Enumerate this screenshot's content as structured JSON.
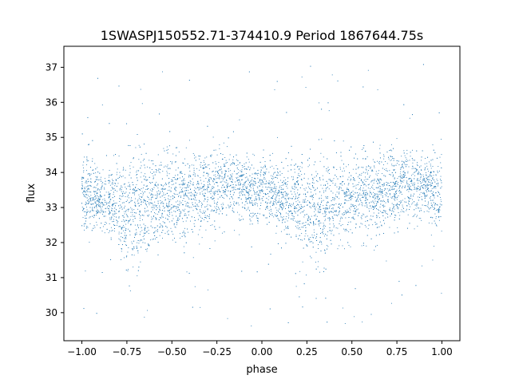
{
  "chart_data": {
    "type": "scatter",
    "title": "1SWASPJ150552.71-374410.9 Period 1867644.75s",
    "xlabel": "phase",
    "ylabel": "flux",
    "xlim": [
      -1.1,
      1.1
    ],
    "ylim": [
      29.2,
      37.6
    ],
    "xticks": [
      -1.0,
      -0.75,
      -0.5,
      -0.25,
      0.0,
      0.25,
      0.5,
      0.75,
      1.0
    ],
    "xtick_labels": [
      "−1.00",
      "−0.75",
      "−0.50",
      "−0.25",
      "0.00",
      "0.25",
      "0.50",
      "0.75",
      "1.00"
    ],
    "yticks": [
      30,
      31,
      32,
      33,
      34,
      35,
      36,
      37
    ],
    "ytick_labels": [
      "30",
      "31",
      "32",
      "33",
      "34",
      "35",
      "36",
      "37"
    ],
    "grid": false,
    "marker_color": "#1f77b4",
    "series": [
      {
        "x_range": [
          -1.0,
          1.0
        ],
        "envelope": {
          "x": [
            -1.0,
            -0.9,
            -0.8,
            -0.75,
            -0.7,
            -0.6,
            -0.5,
            -0.4,
            -0.3,
            -0.25,
            -0.2,
            -0.1,
            0.0,
            0.1,
            0.2,
            0.25,
            0.3,
            0.4,
            0.5,
            0.6,
            0.7,
            0.75,
            0.8,
            0.9,
            1.0
          ],
          "low": [
            32.3,
            32.5,
            32.0,
            31.4,
            31.6,
            32.0,
            32.2,
            32.3,
            32.5,
            32.6,
            32.8,
            32.9,
            32.6,
            32.5,
            32.0,
            31.9,
            31.6,
            32.0,
            32.2,
            32.3,
            32.5,
            32.6,
            32.8,
            32.9,
            32.3
          ],
          "high": [
            34.4,
            34.0,
            34.2,
            34.2,
            34.4,
            34.3,
            34.3,
            34.4,
            34.5,
            34.5,
            34.6,
            34.3,
            34.2,
            34.0,
            34.2,
            34.2,
            34.4,
            34.3,
            34.3,
            34.4,
            34.5,
            34.5,
            34.6,
            34.3,
            34.4
          ]
        },
        "n_points": 6000,
        "outlier_range": [
          29.6,
          37.1
        ]
      }
    ]
  }
}
